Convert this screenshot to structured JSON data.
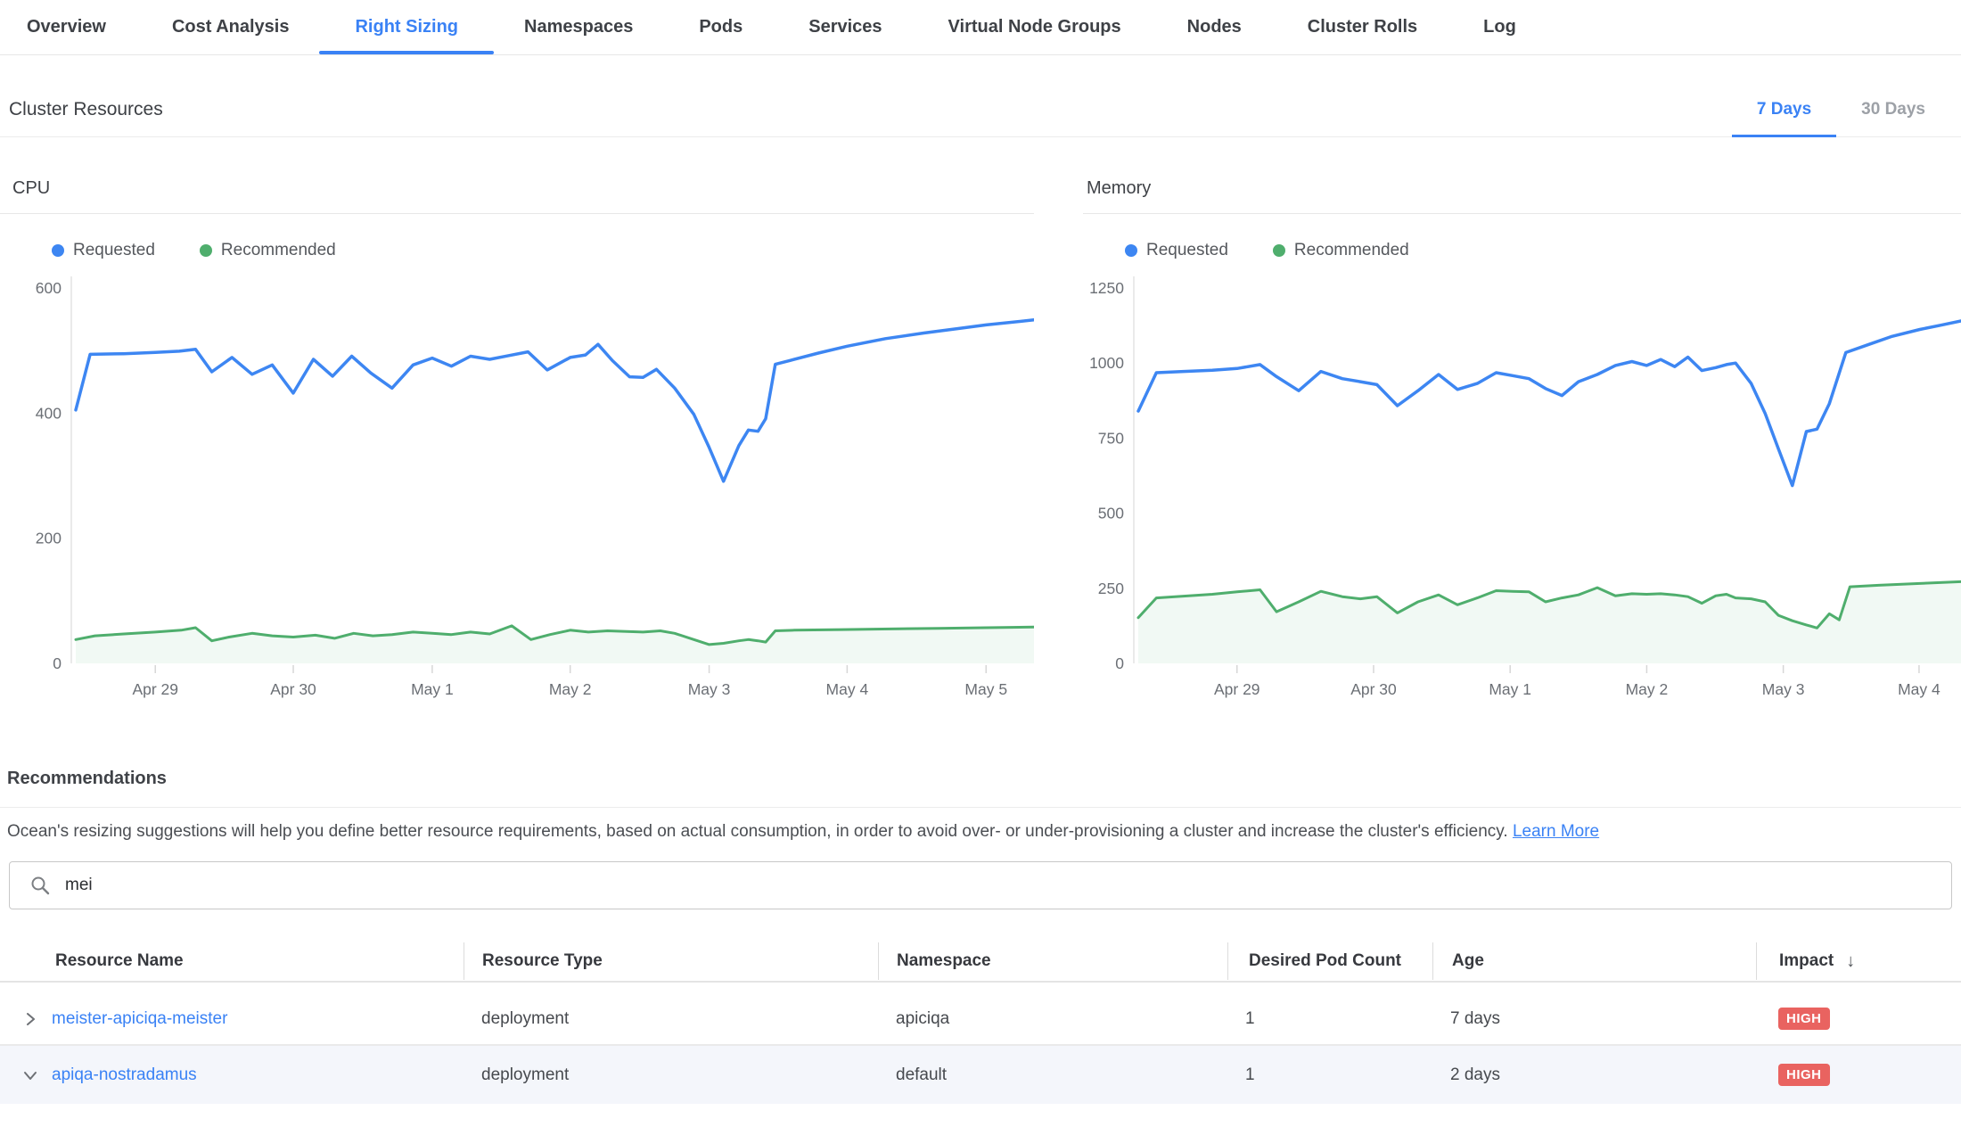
{
  "tabs": {
    "items": [
      "Overview",
      "Cost Analysis",
      "Right Sizing",
      "Namespaces",
      "Pods",
      "Services",
      "Virtual Node Groups",
      "Nodes",
      "Cluster Rolls",
      "Log"
    ],
    "active": "Right Sizing"
  },
  "section": {
    "title": "Cluster Resources",
    "period_7": "7 Days",
    "period_30": "30 Days"
  },
  "recommendations": {
    "title": "Recommendations",
    "description": "Ocean's resizing suggestions will help you define better resource requirements, based on actual consumption, in order to avoid over- or under-provisioning a cluster and increase the cluster's efficiency.",
    "link": "Learn More"
  },
  "search": {
    "value": "mei"
  },
  "table": {
    "columns": [
      "Resource Name",
      "Resource Type",
      "Namespace",
      "Desired Pod Count",
      "Age",
      "Impact"
    ],
    "sort_icon": "↓",
    "rows": [
      {
        "name": "meister-apiciqa-meister",
        "type": "deployment",
        "namespace": "apiciqa",
        "pods": "1",
        "age": "7 days",
        "impact": "HIGH",
        "expanded": false
      },
      {
        "name": "apiqa-nostradamus",
        "type": "deployment",
        "namespace": "default",
        "pods": "1",
        "age": "2 days",
        "impact": "HIGH",
        "expanded": true
      }
    ]
  },
  "colors": {
    "accent_blue": "#3a82f5",
    "requested_line": "#3d86f2",
    "recommended_line": "#4fae6d",
    "recommended_fill": "rgba(79,174,109,0.08)",
    "impact_high_badge": "#e96360"
  },
  "chart_data": [
    {
      "type": "line",
      "title": "CPU",
      "ylim": [
        0,
        600
      ],
      "y_ticks": [
        600,
        400,
        200,
        0
      ],
      "x_ticks": [
        {
          "f": 0.083,
          "label": "Apr 29"
        },
        {
          "f": 0.227,
          "label": "Apr 30"
        },
        {
          "f": 0.372,
          "label": "May 1"
        },
        {
          "f": 0.516,
          "label": "May 2"
        },
        {
          "f": 0.661,
          "label": "May 3"
        },
        {
          "f": 0.805,
          "label": "May 4"
        },
        {
          "f": 0.95,
          "label": "May 5"
        }
      ],
      "series": [
        {
          "name": "Requested",
          "color": "#3d86f2",
          "points": [
            [
              0,
              405
            ],
            [
              0.015,
              494
            ],
            [
              0.05,
              495
            ],
            [
              0.083,
              497
            ],
            [
              0.108,
              499
            ],
            [
              0.125,
              502
            ],
            [
              0.142,
              466
            ],
            [
              0.163,
              489
            ],
            [
              0.184,
              462
            ],
            [
              0.205,
              477
            ],
            [
              0.227,
              432
            ],
            [
              0.248,
              486
            ],
            [
              0.268,
              459
            ],
            [
              0.288,
              491
            ],
            [
              0.308,
              464
            ],
            [
              0.33,
              440
            ],
            [
              0.352,
              477
            ],
            [
              0.372,
              488
            ],
            [
              0.392,
              475
            ],
            [
              0.412,
              491
            ],
            [
              0.432,
              486
            ],
            [
              0.452,
              492
            ],
            [
              0.472,
              498
            ],
            [
              0.492,
              469
            ],
            [
              0.516,
              489
            ],
            [
              0.532,
              493
            ],
            [
              0.545,
              510
            ],
            [
              0.56,
              484
            ],
            [
              0.578,
              458
            ],
            [
              0.592,
              457
            ],
            [
              0.606,
              470
            ],
            [
              0.625,
              440
            ],
            [
              0.645,
              398
            ],
            [
              0.661,
              345
            ],
            [
              0.676,
              291
            ],
            [
              0.692,
              348
            ],
            [
              0.702,
              373
            ],
            [
              0.712,
              371
            ],
            [
              0.72,
              391
            ],
            [
              0.73,
              478
            ],
            [
              0.745,
              484
            ],
            [
              0.775,
              496
            ],
            [
              0.805,
              507
            ],
            [
              0.845,
              519
            ],
            [
              0.885,
              528
            ],
            [
              0.92,
              535
            ],
            [
              0.95,
              541
            ],
            [
              1,
              549
            ]
          ]
        },
        {
          "name": "Recommended",
          "color": "#4fae6d",
          "fill": true,
          "fill_color": "rgba(79,174,109,0.08)",
          "points": [
            [
              0,
              38
            ],
            [
              0.02,
              44
            ],
            [
              0.05,
              47
            ],
            [
              0.083,
              50
            ],
            [
              0.11,
              53
            ],
            [
              0.125,
              57
            ],
            [
              0.142,
              36
            ],
            [
              0.16,
              42
            ],
            [
              0.184,
              48
            ],
            [
              0.205,
              44
            ],
            [
              0.227,
              42
            ],
            [
              0.25,
              45
            ],
            [
              0.27,
              40
            ],
            [
              0.29,
              48
            ],
            [
              0.31,
              44
            ],
            [
              0.33,
              46
            ],
            [
              0.352,
              50
            ],
            [
              0.372,
              48
            ],
            [
              0.392,
              46
            ],
            [
              0.412,
              50
            ],
            [
              0.432,
              47
            ],
            [
              0.455,
              60
            ],
            [
              0.475,
              38
            ],
            [
              0.495,
              46
            ],
            [
              0.516,
              53
            ],
            [
              0.535,
              50
            ],
            [
              0.555,
              52
            ],
            [
              0.575,
              51
            ],
            [
              0.592,
              50
            ],
            [
              0.61,
              52
            ],
            [
              0.625,
              48
            ],
            [
              0.645,
              38
            ],
            [
              0.661,
              30
            ],
            [
              0.676,
              32
            ],
            [
              0.692,
              36
            ],
            [
              0.702,
              38
            ],
            [
              0.712,
              36
            ],
            [
              0.72,
              34
            ],
            [
              0.73,
              52
            ],
            [
              0.75,
              53
            ],
            [
              0.8,
              54
            ],
            [
              0.85,
              55
            ],
            [
              0.9,
              56
            ],
            [
              0.95,
              57
            ],
            [
              1,
              58
            ]
          ]
        }
      ]
    },
    {
      "type": "line",
      "title": "Memory",
      "ylim": [
        0,
        1250
      ],
      "y_ticks": [
        1250,
        1000,
        750,
        500,
        250,
        0
      ],
      "x_ticks": [
        {
          "f": 0.12,
          "label": "Apr 29"
        },
        {
          "f": 0.286,
          "label": "Apr 30"
        },
        {
          "f": 0.452,
          "label": "May 1"
        },
        {
          "f": 0.618,
          "label": "May 2"
        },
        {
          "f": 0.784,
          "label": "May 3"
        },
        {
          "f": 0.949,
          "label": "May 4"
        }
      ],
      "series": [
        {
          "name": "Requested",
          "color": "#3d86f2",
          "points": [
            [
              0,
              840
            ],
            [
              0.022,
              968
            ],
            [
              0.055,
              972
            ],
            [
              0.09,
              976
            ],
            [
              0.12,
              982
            ],
            [
              0.148,
              995
            ],
            [
              0.168,
              955
            ],
            [
              0.195,
              908
            ],
            [
              0.222,
              972
            ],
            [
              0.248,
              948
            ],
            [
              0.27,
              938
            ],
            [
              0.29,
              928
            ],
            [
              0.315,
              858
            ],
            [
              0.34,
              908
            ],
            [
              0.365,
              962
            ],
            [
              0.388,
              912
            ],
            [
              0.412,
              932
            ],
            [
              0.435,
              968
            ],
            [
              0.455,
              958
            ],
            [
              0.475,
              948
            ],
            [
              0.495,
              915
            ],
            [
              0.515,
              892
            ],
            [
              0.535,
              938
            ],
            [
              0.558,
              962
            ],
            [
              0.58,
              992
            ],
            [
              0.6,
              1005
            ],
            [
              0.618,
              992
            ],
            [
              0.635,
              1012
            ],
            [
              0.652,
              988
            ],
            [
              0.668,
              1020
            ],
            [
              0.685,
              975
            ],
            [
              0.702,
              985
            ],
            [
              0.715,
              995
            ],
            [
              0.726,
              1000
            ],
            [
              0.745,
              932
            ],
            [
              0.762,
              832
            ],
            [
              0.778,
              715
            ],
            [
              0.795,
              592
            ],
            [
              0.812,
              772
            ],
            [
              0.825,
              780
            ],
            [
              0.84,
              865
            ],
            [
              0.86,
              1035
            ],
            [
              0.888,
              1062
            ],
            [
              0.915,
              1088
            ],
            [
              0.95,
              1112
            ],
            [
              0.975,
              1126
            ],
            [
              1,
              1140
            ]
          ]
        },
        {
          "name": "Recommended",
          "color": "#4fae6d",
          "fill": true,
          "fill_color": "rgba(79,174,109,0.08)",
          "points": [
            [
              0,
              152
            ],
            [
              0.022,
              218
            ],
            [
              0.055,
              224
            ],
            [
              0.09,
              230
            ],
            [
              0.12,
              238
            ],
            [
              0.148,
              245
            ],
            [
              0.168,
              172
            ],
            [
              0.195,
              205
            ],
            [
              0.222,
              240
            ],
            [
              0.248,
              222
            ],
            [
              0.27,
              215
            ],
            [
              0.29,
              222
            ],
            [
              0.315,
              168
            ],
            [
              0.34,
              205
            ],
            [
              0.365,
              228
            ],
            [
              0.388,
              195
            ],
            [
              0.412,
              218
            ],
            [
              0.435,
              242
            ],
            [
              0.455,
              240
            ],
            [
              0.475,
              238
            ],
            [
              0.495,
              205
            ],
            [
              0.515,
              218
            ],
            [
              0.535,
              228
            ],
            [
              0.558,
              252
            ],
            [
              0.58,
              225
            ],
            [
              0.6,
              232
            ],
            [
              0.618,
              230
            ],
            [
              0.635,
              232
            ],
            [
              0.652,
              228
            ],
            [
              0.668,
              222
            ],
            [
              0.685,
              200
            ],
            [
              0.702,
              225
            ],
            [
              0.715,
              230
            ],
            [
              0.726,
              218
            ],
            [
              0.745,
              215
            ],
            [
              0.762,
              205
            ],
            [
              0.778,
              160
            ],
            [
              0.795,
              142
            ],
            [
              0.812,
              128
            ],
            [
              0.825,
              118
            ],
            [
              0.84,
              165
            ],
            [
              0.852,
              145
            ],
            [
              0.865,
              255
            ],
            [
              0.9,
              260
            ],
            [
              0.95,
              266
            ],
            [
              1,
              272
            ]
          ]
        }
      ]
    }
  ]
}
